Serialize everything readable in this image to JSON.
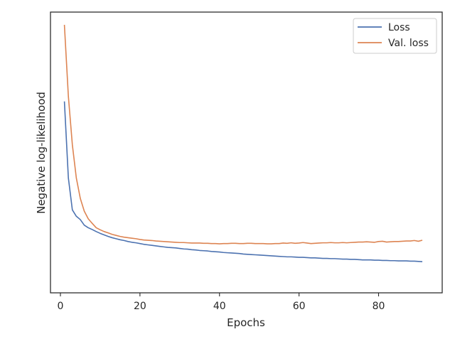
{
  "chart_data": {
    "type": "line",
    "title": "",
    "xlabel": "Epochs",
    "ylabel": "Negative log-likelihood",
    "xlim": [
      -2.5,
      96
    ],
    "ylim": [
      -0.05,
      1.05
    ],
    "y_ticks_labeled": false,
    "x_ticks": [
      0,
      20,
      40,
      60,
      80
    ],
    "x_tick_labels": [
      "0",
      "20",
      "40",
      "60",
      "80"
    ],
    "grid": false,
    "legend_position": "top-right",
    "series": [
      {
        "name": "Loss",
        "color": "#4c72b0",
        "x": [
          1,
          2,
          3,
          4,
          5,
          6,
          7,
          8,
          9,
          10,
          11,
          12,
          13,
          14,
          15,
          16,
          17,
          18,
          19,
          20,
          21,
          22,
          23,
          24,
          25,
          26,
          27,
          28,
          29,
          30,
          31,
          32,
          33,
          34,
          35,
          36,
          37,
          38,
          39,
          40,
          41,
          42,
          43,
          44,
          45,
          46,
          47,
          48,
          49,
          50,
          51,
          52,
          53,
          54,
          55,
          56,
          57,
          58,
          59,
          60,
          61,
          62,
          63,
          64,
          65,
          66,
          67,
          68,
          69,
          70,
          71,
          72,
          73,
          74,
          75,
          76,
          77,
          78,
          79,
          80,
          81,
          82,
          83,
          84,
          85,
          86,
          87,
          88,
          89,
          90,
          91
        ],
        "y": [
          0.7,
          0.4,
          0.275,
          0.25,
          0.237,
          0.215,
          0.205,
          0.198,
          0.19,
          0.183,
          0.177,
          0.171,
          0.166,
          0.162,
          0.158,
          0.155,
          0.151,
          0.148,
          0.146,
          0.143,
          0.14,
          0.138,
          0.136,
          0.134,
          0.132,
          0.13,
          0.128,
          0.127,
          0.126,
          0.124,
          0.122,
          0.121,
          0.119,
          0.118,
          0.116,
          0.115,
          0.114,
          0.112,
          0.111,
          0.11,
          0.108,
          0.107,
          0.106,
          0.105,
          0.104,
          0.102,
          0.101,
          0.1,
          0.099,
          0.098,
          0.097,
          0.096,
          0.095,
          0.094,
          0.093,
          0.092,
          0.091,
          0.091,
          0.09,
          0.089,
          0.089,
          0.088,
          0.087,
          0.087,
          0.086,
          0.085,
          0.085,
          0.084,
          0.084,
          0.083,
          0.082,
          0.082,
          0.081,
          0.081,
          0.08,
          0.079,
          0.079,
          0.079,
          0.078,
          0.078,
          0.077,
          0.077,
          0.076,
          0.076,
          0.075,
          0.075,
          0.075,
          0.074,
          0.074,
          0.073,
          0.072
        ]
      },
      {
        "name": "Val. loss",
        "color": "#dd8452",
        "x": [
          1,
          2,
          3,
          4,
          5,
          6,
          7,
          8,
          9,
          10,
          11,
          12,
          13,
          14,
          15,
          16,
          17,
          18,
          19,
          20,
          21,
          22,
          23,
          24,
          25,
          26,
          27,
          28,
          29,
          30,
          31,
          32,
          33,
          34,
          35,
          36,
          37,
          38,
          39,
          40,
          41,
          42,
          43,
          44,
          45,
          46,
          47,
          48,
          49,
          50,
          51,
          52,
          53,
          54,
          55,
          56,
          57,
          58,
          59,
          60,
          61,
          62,
          63,
          64,
          65,
          66,
          67,
          68,
          69,
          70,
          71,
          72,
          73,
          74,
          75,
          76,
          77,
          78,
          79,
          80,
          81,
          82,
          83,
          84,
          85,
          86,
          87,
          88,
          89,
          90,
          91
        ],
        "y": [
          1.0,
          0.72,
          0.53,
          0.4,
          0.32,
          0.27,
          0.24,
          0.222,
          0.205,
          0.197,
          0.19,
          0.185,
          0.179,
          0.175,
          0.171,
          0.168,
          0.166,
          0.164,
          0.162,
          0.159,
          0.157,
          0.156,
          0.155,
          0.153,
          0.152,
          0.151,
          0.15,
          0.149,
          0.148,
          0.147,
          0.147,
          0.146,
          0.145,
          0.145,
          0.145,
          0.144,
          0.144,
          0.143,
          0.143,
          0.142,
          0.143,
          0.143,
          0.144,
          0.144,
          0.143,
          0.143,
          0.144,
          0.144,
          0.143,
          0.143,
          0.143,
          0.142,
          0.142,
          0.143,
          0.143,
          0.145,
          0.144,
          0.146,
          0.144,
          0.145,
          0.147,
          0.145,
          0.143,
          0.144,
          0.145,
          0.146,
          0.146,
          0.147,
          0.146,
          0.146,
          0.147,
          0.146,
          0.147,
          0.148,
          0.149,
          0.149,
          0.15,
          0.149,
          0.148,
          0.151,
          0.152,
          0.149,
          0.15,
          0.151,
          0.151,
          0.152,
          0.153,
          0.153,
          0.155,
          0.152,
          0.156
        ]
      }
    ]
  }
}
